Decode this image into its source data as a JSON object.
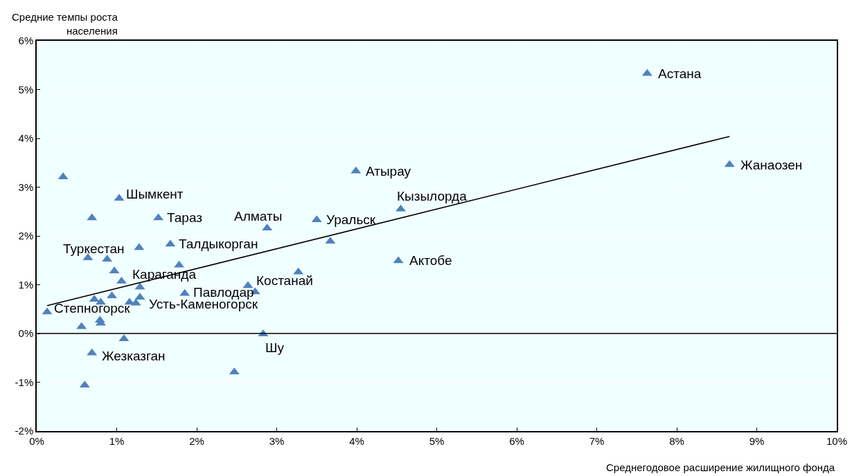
{
  "chart_data": {
    "type": "scatter",
    "xlabel": "Среднегодовое расширение жилищного фонда",
    "ylabel": "Средние темпы роста населения",
    "xlim": [
      0,
      10
    ],
    "ylim": [
      -2,
      6
    ],
    "xticks": [
      {
        "value": 0,
        "label": "0%"
      },
      {
        "value": 1,
        "label": "1%"
      },
      {
        "value": 2,
        "label": "2%"
      },
      {
        "value": 3,
        "label": "3%"
      },
      {
        "value": 4,
        "label": "4%"
      },
      {
        "value": 5,
        "label": "5%"
      },
      {
        "value": 6,
        "label": "6%"
      },
      {
        "value": 7,
        "label": "7%"
      },
      {
        "value": 8,
        "label": "8%"
      },
      {
        "value": 9,
        "label": "9%"
      },
      {
        "value": 10,
        "label": "10%"
      }
    ],
    "yticks": [
      {
        "value": -2,
        "label": "-2%"
      },
      {
        "value": -1,
        "label": "-1%"
      },
      {
        "value": 0,
        "label": "0%"
      },
      {
        "value": 1,
        "label": "1%"
      },
      {
        "value": 2,
        "label": "2%"
      },
      {
        "value": 3,
        "label": "3%"
      },
      {
        "value": 4,
        "label": "4%"
      },
      {
        "value": 5,
        "label": "5%"
      },
      {
        "value": 6,
        "label": "6%"
      }
    ],
    "grid": true,
    "marker": "triangle",
    "ref_lines": [
      {
        "axis": "y",
        "value": 0,
        "color": "#000000"
      }
    ],
    "series": [
      {
        "color": "#4f81bd",
        "x": [
          0.13,
          0.33,
          0.56,
          0.6,
          0.64,
          0.69,
          0.69,
          0.72,
          0.8,
          0.79,
          0.8,
          0.88,
          0.97,
          1.06,
          0.94,
          1.03,
          1.09,
          1.16,
          1.24,
          1.29,
          1.29,
          1.28,
          1.52,
          1.67,
          1.78,
          1.85,
          2.47,
          2.64,
          2.73,
          2.83,
          2.88,
          3.27,
          3.5,
          3.67,
          3.99,
          4.55,
          4.52,
          7.63,
          8.66
        ],
        "values": [
          0.44,
          3.21,
          0.14,
          -1.06,
          1.55,
          2.37,
          -0.4,
          0.7,
          0.64,
          0.27,
          0.21,
          1.52,
          1.28,
          1.07,
          0.77,
          2.77,
          -0.11,
          0.64,
          0.62,
          0.74,
          0.95,
          1.76,
          2.37,
          1.83,
          1.4,
          0.82,
          -0.79,
          0.98,
          0.85,
          -0.01,
          2.16,
          1.26,
          2.33,
          1.89,
          3.33,
          2.55,
          1.49,
          5.33,
          3.46
        ]
      },
      {
        "type": "line",
        "color": "#000000",
        "marker": "none",
        "line_style": "solid",
        "x": [
          0.13,
          8.66
        ],
        "values": [
          0.57,
          4.04
        ]
      }
    ],
    "annotations": [
      {
        "text": "Астана",
        "x": 7.63,
        "y": 5.33
      },
      {
        "text": "Жанаозен",
        "x": 8.66,
        "y": 3.46
      },
      {
        "text": "Атырау",
        "x": 3.99,
        "y": 3.33
      },
      {
        "text": "Кызылорда",
        "x": 4.55,
        "y": 2.55
      },
      {
        "text": "Уральск",
        "x": 3.5,
        "y": 2.33
      },
      {
        "text": "Алматы",
        "x": 2.88,
        "y": 2.16
      },
      {
        "text": "Актобе",
        "x": 4.52,
        "y": 1.49
      },
      {
        "text": "Шымкент",
        "x": 1.03,
        "y": 2.77
      },
      {
        "text": "Тараз",
        "x": 1.52,
        "y": 2.37
      },
      {
        "text": "Талдыкорган",
        "x": 1.67,
        "y": 1.83
      },
      {
        "text": "Туркестан",
        "x": 0.64,
        "y": 1.55
      },
      {
        "text": "Караганда",
        "x": 1.06,
        "y": 1.07
      },
      {
        "text": "Павлодар",
        "x": 1.85,
        "y": 0.82
      },
      {
        "text": "Костанай",
        "x": 2.64,
        "y": 0.98
      },
      {
        "text": "Усть-Каменогорск",
        "x": 1.29,
        "y": 0.74
      },
      {
        "text": "Степногорск",
        "x": 0.13,
        "y": 0.44
      },
      {
        "text": "Жезказган",
        "x": 0.69,
        "y": -0.4
      },
      {
        "text": "Шу",
        "x": 2.83,
        "y": -0.01
      }
    ]
  }
}
